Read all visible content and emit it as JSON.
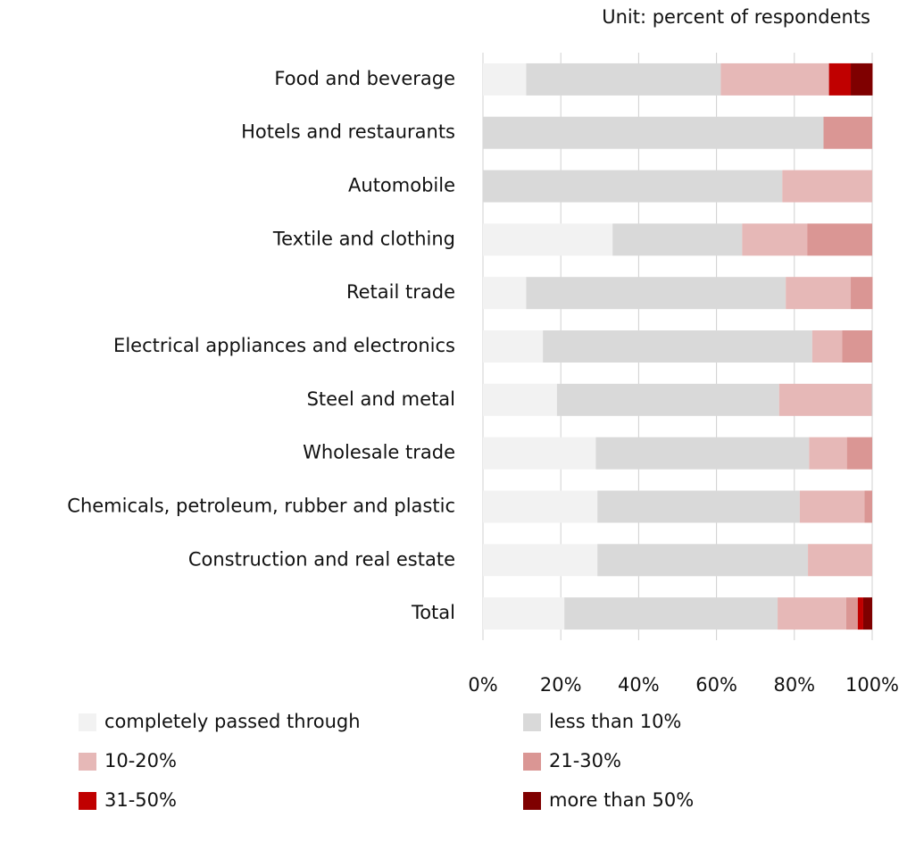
{
  "chart_data": {
    "type": "stacked-barh",
    "title": "Unit: percent of respondents",
    "categories": [
      "Food and beverage",
      "Hotels and restaurants",
      "Automobile",
      "Textile and clothing",
      "Retail trade",
      "Electrical appliances and electronics",
      "Steel and metal",
      "Wholesale trade",
      "Chemicals, petroleum, rubber and plastic",
      "Construction and real estate",
      "Total"
    ],
    "series": [
      {
        "name": "completely passed through",
        "color": "#f2f2f2",
        "values": [
          11.1,
          0,
          0,
          33.3,
          11.1,
          15.4,
          19.0,
          29.0,
          29.4,
          29.4,
          20.9
        ]
      },
      {
        "name": "less than 10%",
        "color": "#d9d9d9",
        "values": [
          50.0,
          87.5,
          76.9,
          33.3,
          66.7,
          69.2,
          57.1,
          54.8,
          52.0,
          54.1,
          54.8
        ]
      },
      {
        "name": "10-20%",
        "color": "#e6b8b7",
        "values": [
          27.8,
          0,
          23.1,
          16.7,
          16.7,
          7.7,
          23.8,
          9.7,
          16.6,
          16.5,
          17.6
        ]
      },
      {
        "name": "21-30%",
        "color": "#da9694",
        "values": [
          0,
          12.5,
          0,
          16.7,
          5.6,
          7.7,
          0,
          6.5,
          2.0,
          0,
          3.0
        ]
      },
      {
        "name": "31-50%",
        "color": "#c00000",
        "values": [
          5.6,
          0,
          0,
          0,
          0,
          0,
          0,
          0,
          0,
          0,
          1.4
        ]
      },
      {
        "name": "more than 50%",
        "color": "#7f0000",
        "values": [
          5.6,
          0,
          0,
          0,
          0,
          0,
          0,
          0,
          0,
          0,
          2.3
        ]
      }
    ],
    "xlim": [
      0,
      100
    ],
    "xticks": [
      {
        "value": 0,
        "label": "0%"
      },
      {
        "value": 20,
        "label": "20%"
      },
      {
        "value": 40,
        "label": "40%"
      },
      {
        "value": 60,
        "label": "60%"
      },
      {
        "value": 80,
        "label": "80%"
      },
      {
        "value": 100,
        "label": "100%"
      }
    ],
    "grid": true
  }
}
